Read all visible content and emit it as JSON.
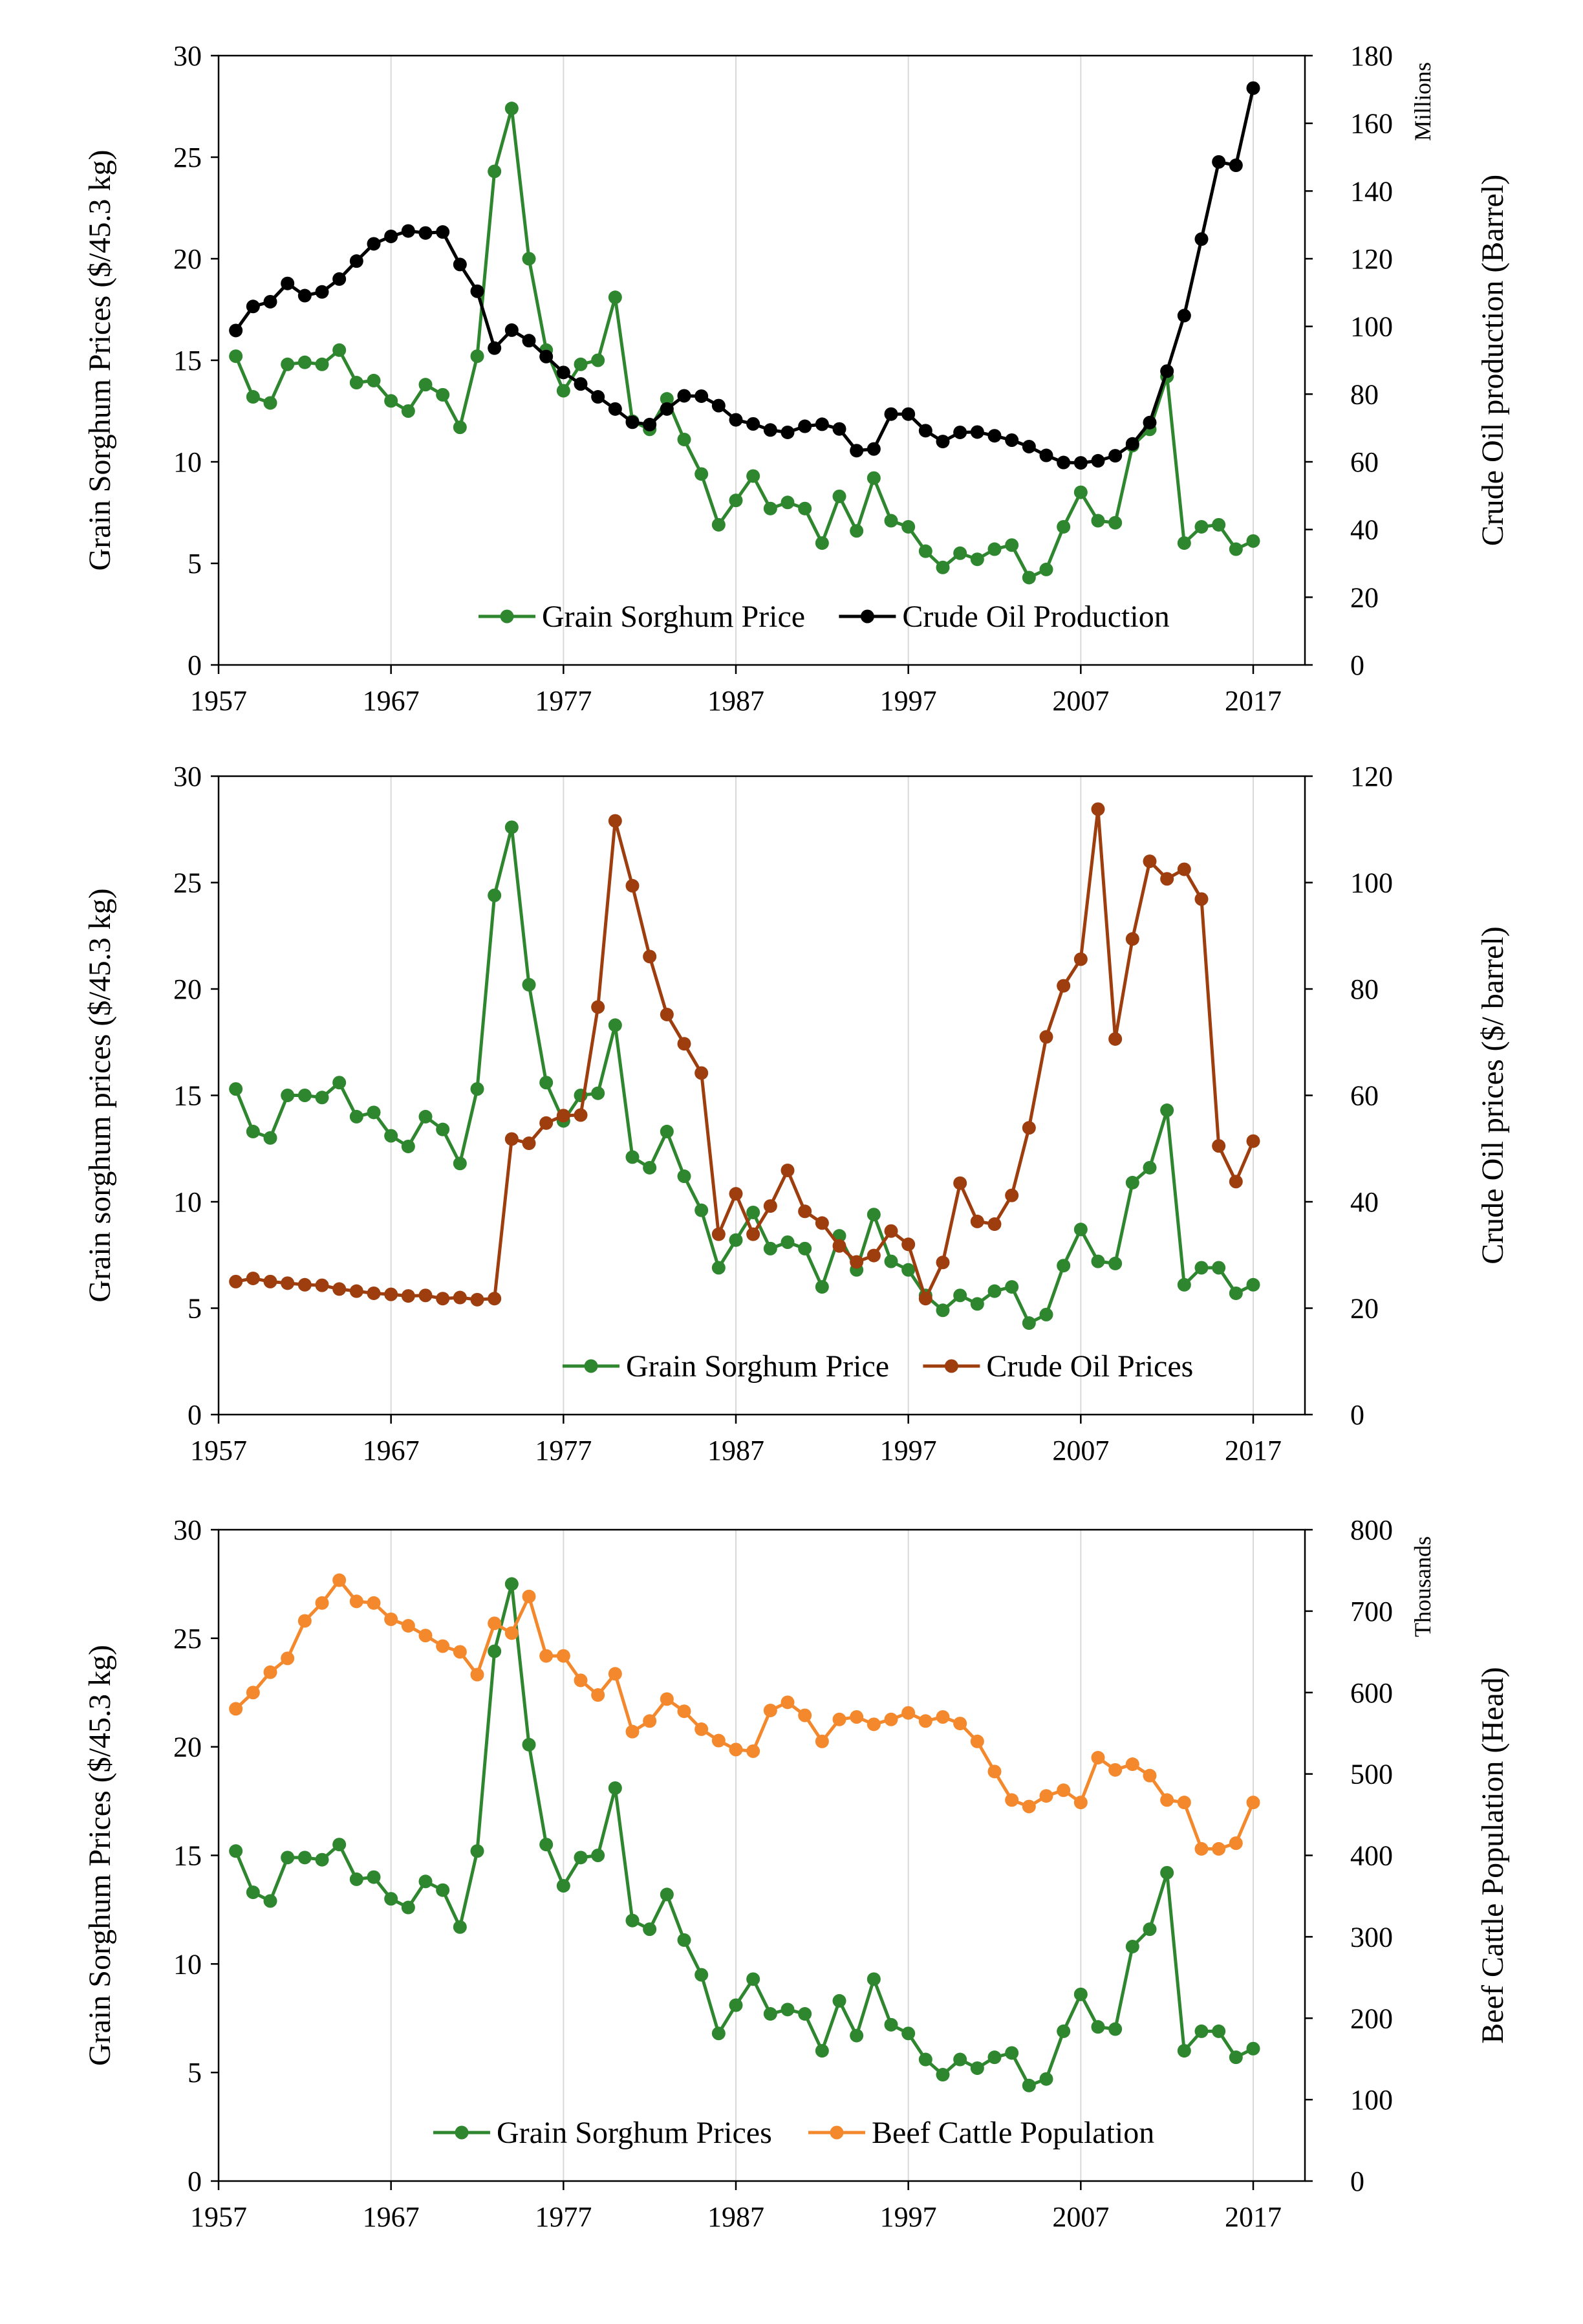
{
  "charts": [
    {
      "legend": {
        "left": {
          "label": "Grain Sorghum Price",
          "color": "#2e862e"
        },
        "right": {
          "label": "Crude Oil Production",
          "color": "#000000"
        }
      },
      "axes": {
        "left_label": "Grain Sorghum  Prices ($/45.3 kg)",
        "right_label": "Crude Oil production  (Barrel)",
        "right_unit": "Millions"
      }
    },
    {
      "legend": {
        "left": {
          "label": "Grain Sorghum Price",
          "color": "#2e862e"
        },
        "right": {
          "label": "Crude Oil Prices",
          "color": "#9e3d0d"
        }
      },
      "axes": {
        "left_label": "Grain sorghum  prices  ($/45.3 kg)",
        "right_label": "Crude Oil prices ($/ barrel)",
        "right_unit": ""
      }
    },
    {
      "legend": {
        "left": {
          "label": "Grain Sorghum Prices",
          "color": "#2e862e"
        },
        "right": {
          "label": "Beef Cattle Population",
          "color": "#f4882d"
        }
      },
      "axes": {
        "left_label": "Grain Sorghum  Prices  ($/45.3 kg)",
        "right_label": "Beef Cattle Population  (Head)",
        "right_unit": "Thousands"
      }
    }
  ],
  "chart_data": [
    {
      "type": "line",
      "x": [
        1958,
        1959,
        1960,
        1961,
        1962,
        1963,
        1964,
        1965,
        1966,
        1967,
        1968,
        1969,
        1970,
        1971,
        1972,
        1973,
        1974,
        1975,
        1976,
        1977,
        1978,
        1979,
        1980,
        1981,
        1982,
        1983,
        1984,
        1985,
        1986,
        1987,
        1988,
        1989,
        1990,
        1991,
        1992,
        1993,
        1994,
        1995,
        1996,
        1997,
        1998,
        1999,
        2000,
        2001,
        2002,
        2003,
        2004,
        2005,
        2006,
        2007,
        2008,
        2009,
        2010,
        2011,
        2012,
        2013,
        2014,
        2015,
        2016,
        2017
      ],
      "x_ticks": [
        "1957",
        "1967",
        "1977",
        "1987",
        "1997",
        "2007",
        "2017"
      ],
      "xlim": [
        1957,
        2020
      ],
      "y_left": {
        "lim": [
          0,
          30
        ],
        "ticks": [
          "0",
          "5",
          "10",
          "15",
          "20",
          "25",
          "30"
        ]
      },
      "y_right": {
        "lim": [
          0,
          180
        ],
        "ticks": [
          "0",
          "20",
          "40",
          "60",
          "80",
          "100",
          "120",
          "140",
          "160",
          "180"
        ]
      },
      "series": [
        {
          "name": "Grain Sorghum Price",
          "axis": "left",
          "color": "#2e862e",
          "values": [
            15.2,
            13.2,
            12.9,
            14.8,
            14.9,
            14.8,
            15.5,
            13.9,
            14.0,
            13.0,
            12.5,
            13.8,
            13.3,
            11.7,
            15.2,
            24.3,
            27.4,
            20.0,
            15.5,
            13.5,
            14.8,
            15.0,
            18.1,
            12.0,
            11.6,
            13.1,
            11.1,
            9.4,
            6.9,
            8.1,
            9.3,
            7.7,
            8.0,
            7.7,
            6.0,
            8.3,
            6.6,
            9.2,
            7.1,
            6.8,
            5.6,
            4.8,
            5.5,
            5.2,
            5.7,
            5.9,
            4.3,
            4.7,
            6.8,
            8.5,
            7.1,
            7.0,
            10.8,
            11.6,
            14.2,
            6.0,
            6.8,
            6.9,
            5.7,
            6.1
          ]
        },
        {
          "name": "Crude Oil Production",
          "axis": "right",
          "color": "#000000",
          "values": [
            98.8,
            105.9,
            107.3,
            112.7,
            109.1,
            110.2,
            114.0,
            119.3,
            124.4,
            126.6,
            128.2,
            127.6,
            127.9,
            118.3,
            110.4,
            93.6,
            98.9,
            95.8,
            91.1,
            86.4,
            83.0,
            79.2,
            75.6,
            71.7,
            71.0,
            75.6,
            79.5,
            79.4,
            76.6,
            72.4,
            71.2,
            69.4,
            68.7,
            70.5,
            71.1,
            69.7,
            63.3,
            63.8,
            74.1,
            74.1,
            69.2,
            66.0,
            68.7,
            68.8,
            67.7,
            66.4,
            64.5,
            61.9,
            59.8,
            59.7,
            60.3,
            61.8,
            65.3,
            71.6,
            86.8,
            103.2,
            125.8,
            148.6,
            147.6,
            170.4
          ]
        }
      ]
    },
    {
      "type": "line",
      "x": [
        1958,
        1959,
        1960,
        1961,
        1962,
        1963,
        1964,
        1965,
        1966,
        1967,
        1968,
        1969,
        1970,
        1971,
        1972,
        1973,
        1974,
        1975,
        1976,
        1977,
        1978,
        1979,
        1980,
        1981,
        1982,
        1983,
        1984,
        1985,
        1986,
        1987,
        1988,
        1989,
        1990,
        1991,
        1992,
        1993,
        1994,
        1995,
        1996,
        1997,
        1998,
        1999,
        2000,
        2001,
        2002,
        2003,
        2004,
        2005,
        2006,
        2007,
        2008,
        2009,
        2010,
        2011,
        2012,
        2013,
        2014,
        2015,
        2016,
        2017
      ],
      "x_ticks": [
        "1957",
        "1967",
        "1977",
        "1987",
        "1997",
        "2007",
        "2017"
      ],
      "xlim": [
        1957,
        2020
      ],
      "y_left": {
        "lim": [
          0,
          30
        ],
        "ticks": [
          "0",
          "5",
          "10",
          "15",
          "20",
          "25",
          "30"
        ]
      },
      "y_right": {
        "lim": [
          0,
          120
        ],
        "ticks": [
          "0",
          "20",
          "40",
          "60",
          "80",
          "100",
          "120"
        ]
      },
      "series": [
        {
          "name": "Grain Sorghum Price",
          "axis": "left",
          "color": "#2e862e",
          "values": [
            15.3,
            13.3,
            13.0,
            15.0,
            15.0,
            14.9,
            15.6,
            14.0,
            14.2,
            13.1,
            12.6,
            14.0,
            13.4,
            11.8,
            15.3,
            24.4,
            27.6,
            20.2,
            15.6,
            13.8,
            15.0,
            15.1,
            18.3,
            12.1,
            11.6,
            13.3,
            11.2,
            9.6,
            6.9,
            8.2,
            9.5,
            7.8,
            8.1,
            7.8,
            6.0,
            8.4,
            6.8,
            9.4,
            7.2,
            6.8,
            5.6,
            4.9,
            5.6,
            5.2,
            5.8,
            6.0,
            4.3,
            4.7,
            7.0,
            8.7,
            7.2,
            7.1,
            10.9,
            11.6,
            14.3,
            6.1,
            6.9,
            6.9,
            5.7,
            6.1
          ]
        },
        {
          "name": "Crude Oil Prices",
          "axis": "right",
          "color": "#9e3d0d",
          "values": [
            25.0,
            25.6,
            25.0,
            24.7,
            24.4,
            24.3,
            23.6,
            23.2,
            22.8,
            22.6,
            22.3,
            22.4,
            21.8,
            22.0,
            21.6,
            21.8,
            51.8,
            51.0,
            54.8,
            56.2,
            56.3,
            76.6,
            111.6,
            99.4,
            86.1,
            75.2,
            69.7,
            64.2,
            33.9,
            41.5,
            33.9,
            39.2,
            45.9,
            38.2,
            36.0,
            31.7,
            28.7,
            29.9,
            34.5,
            32.0,
            21.8,
            28.6,
            43.5,
            36.3,
            35.8,
            41.2,
            53.9,
            71.0,
            80.6,
            85.6,
            113.8,
            70.6,
            89.4,
            104.0,
            100.7,
            102.5,
            96.9,
            50.5,
            43.8,
            51.4
          ]
        }
      ]
    },
    {
      "type": "line",
      "x": [
        1958,
        1959,
        1960,
        1961,
        1962,
        1963,
        1964,
        1965,
        1966,
        1967,
        1968,
        1969,
        1970,
        1971,
        1972,
        1973,
        1974,
        1975,
        1976,
        1977,
        1978,
        1979,
        1980,
        1981,
        1982,
        1983,
        1984,
        1985,
        1986,
        1987,
        1988,
        1989,
        1990,
        1991,
        1992,
        1993,
        1994,
        1995,
        1996,
        1997,
        1998,
        1999,
        2000,
        2001,
        2002,
        2003,
        2004,
        2005,
        2006,
        2007,
        2008,
        2009,
        2010,
        2011,
        2012,
        2013,
        2014,
        2015,
        2016,
        2017
      ],
      "x_ticks": [
        "1957",
        "1967",
        "1977",
        "1987",
        "1997",
        "2007",
        "2017"
      ],
      "xlim": [
        1957,
        2020
      ],
      "y_left": {
        "lim": [
          0,
          30
        ],
        "ticks": [
          "0",
          "5",
          "10",
          "15",
          "20",
          "25",
          "30"
        ]
      },
      "y_right": {
        "lim": [
          0,
          800
        ],
        "ticks": [
          "0",
          "100",
          "200",
          "300",
          "400",
          "500",
          "600",
          "700",
          "800"
        ]
      },
      "series": [
        {
          "name": "Grain Sorghum Prices",
          "axis": "left",
          "color": "#2e862e",
          "values": [
            15.2,
            13.3,
            12.9,
            14.9,
            14.9,
            14.8,
            15.5,
            13.9,
            14.0,
            13.0,
            12.6,
            13.8,
            13.4,
            11.7,
            15.2,
            24.4,
            27.5,
            20.1,
            15.5,
            13.6,
            14.9,
            15.0,
            18.1,
            12.0,
            11.6,
            13.2,
            11.1,
            9.5,
            6.8,
            8.1,
            9.3,
            7.7,
            7.9,
            7.7,
            6.0,
            8.3,
            6.7,
            9.3,
            7.2,
            6.8,
            5.6,
            4.9,
            5.6,
            5.2,
            5.7,
            5.9,
            4.4,
            4.7,
            6.9,
            8.6,
            7.1,
            7.0,
            10.8,
            11.6,
            14.2,
            6.0,
            6.9,
            6.9,
            5.7,
            6.1
          ]
        },
        {
          "name": "Beef Cattle Population",
          "axis": "right",
          "color": "#f4882d",
          "values": [
            580,
            600,
            625,
            642,
            688,
            710,
            738,
            712,
            710,
            690,
            682,
            670,
            657,
            650,
            622,
            685,
            673,
            718,
            645,
            645,
            615,
            597,
            623,
            552,
            565,
            592,
            577,
            555,
            541,
            530,
            528,
            578,
            588,
            572,
            540,
            567,
            570,
            561,
            567,
            575,
            565,
            570,
            562,
            540,
            503,
            468,
            460,
            473,
            480,
            465,
            520,
            505,
            512,
            498,
            468,
            465,
            408,
            408,
            415,
            465
          ]
        }
      ]
    }
  ]
}
